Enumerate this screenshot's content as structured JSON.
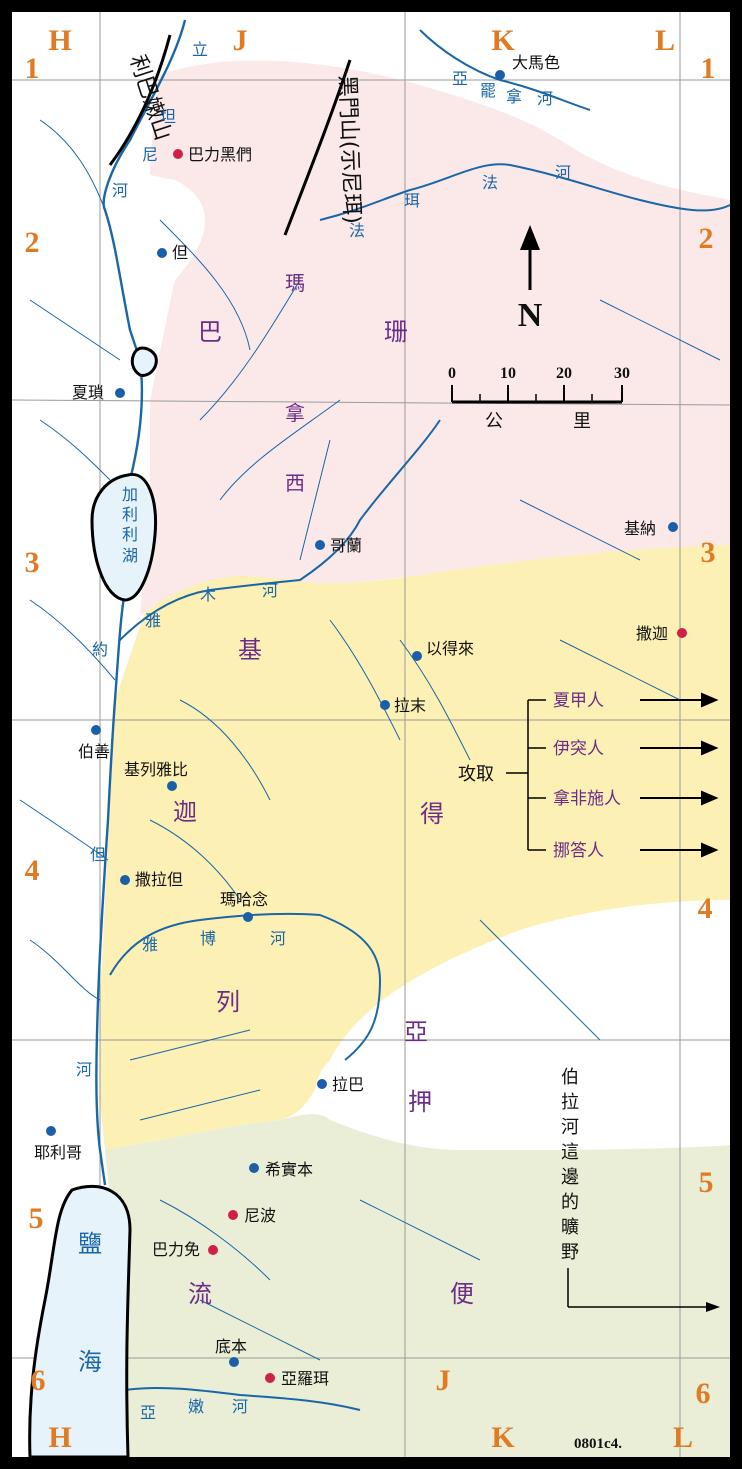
{
  "colors": {
    "manasseh": "#fbe9ea",
    "issachar": "#fcf0b4",
    "reuben": "#eaeed6",
    "water": "#e6f3fb",
    "river": "#1a66a6",
    "grid_label": "#e07b24",
    "region_text": "#6b2d86",
    "city_blue": "#1a5fa8",
    "city_red": "#d0204a"
  },
  "grid": {
    "columns_top": [
      "H",
      "J",
      "K",
      "L"
    ],
    "columns_bottom": [
      "H",
      "J",
      "K",
      "L"
    ],
    "rows_left": [
      "1",
      "2",
      "3",
      "4",
      "5",
      "6"
    ],
    "rows_right": [
      "1",
      "2",
      "3",
      "4",
      "5",
      "6"
    ]
  },
  "mountains": {
    "lebanon": "利巴嫩山",
    "hermon": "黑門山(示尼珥)"
  },
  "compass": {
    "north": "N"
  },
  "scale": {
    "ticks": [
      "0",
      "10",
      "20",
      "30"
    ],
    "unit": [
      "公",
      "里"
    ]
  },
  "regions": {
    "bashan": [
      "巴",
      "珊"
    ],
    "manasseh": [
      "瑪",
      "拿",
      "西"
    ],
    "gilead": [
      "基",
      "列"
    ],
    "gilead_mid": [
      "迦",
      "得"
    ],
    "gad_east": [
      "亞",
      "押"
    ],
    "reuben": [
      "流",
      "便"
    ]
  },
  "rivers": {
    "jordan_upper": [
      "立",
      "坦",
      "尼",
      "河"
    ],
    "jordan": [
      "約",
      "但",
      "河"
    ],
    "abana": [
      "亞",
      "罷",
      "拿",
      "河"
    ],
    "pharpar": [
      "法",
      "珥",
      "法",
      "河"
    ],
    "yarmuk": [
      "雅",
      "木",
      "河"
    ],
    "jabbok": [
      "雅",
      "博",
      "河"
    ],
    "arnon": [
      "亞",
      "嫩",
      "河"
    ]
  },
  "cities": {
    "damascus": "大馬色",
    "baal_hermon": "巴力黑們",
    "dan": "但",
    "hazor": "夏瑣",
    "golan": "哥蘭",
    "kenath": "基納",
    "salecah": "撒迦",
    "edrei": "以得來",
    "ramoth": "拉末",
    "beth_shan": "伯善",
    "jabesh": "基列雅比",
    "zarethan": "撒拉但",
    "mahanaim": "瑪哈念",
    "rabbah": "拉巴",
    "jericho": "耶利哥",
    "heshbon": "希實本",
    "nebo": "尼波",
    "baal_meon": "巴力免",
    "dibon": "底本",
    "aroer": "亞羅珥"
  },
  "lakes": {
    "galilee": [
      "加",
      "利",
      "利",
      "湖"
    ],
    "dead_sea": [
      "鹽",
      "海"
    ]
  },
  "conquest": {
    "label": "攻取",
    "peoples": [
      "夏甲人",
      "伊突人",
      "拿非施人",
      "挪答人"
    ]
  },
  "wilderness": [
    "伯",
    "拉",
    "河",
    "這",
    "邊",
    "的",
    "曠",
    "野"
  ],
  "map_code": "0801c4."
}
